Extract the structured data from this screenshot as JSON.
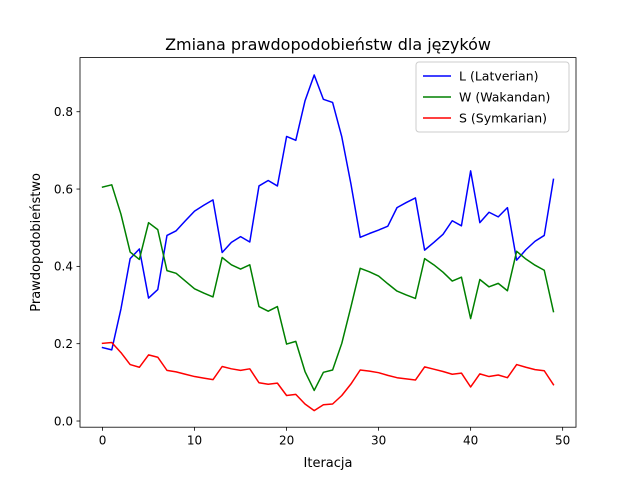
{
  "chart_data": {
    "type": "line",
    "title": "Zmiana prawdopodobieństw dla języków",
    "xlabel": "Iteracja",
    "ylabel": "Prawdopodobieństwo",
    "xlim": [
      -2.45,
      51.45
    ],
    "ylim": [
      -0.016,
      0.94
    ],
    "xticks": [
      0,
      10,
      20,
      30,
      40,
      50
    ],
    "yticks": [
      0.0,
      0.2,
      0.4,
      0.6,
      0.8
    ],
    "xtick_labels": [
      "0",
      "10",
      "20",
      "30",
      "40",
      "50"
    ],
    "ytick_labels": [
      "0.0",
      "0.2",
      "0.4",
      "0.6",
      "0.8"
    ],
    "grid": false,
    "legend_position": "top-right",
    "x": [
      0,
      1,
      2,
      3,
      4,
      5,
      6,
      7,
      8,
      9,
      10,
      11,
      12,
      13,
      14,
      15,
      16,
      17,
      18,
      19,
      20,
      21,
      22,
      23,
      24,
      25,
      26,
      27,
      28,
      29,
      30,
      31,
      32,
      33,
      34,
      35,
      36,
      37,
      38,
      39,
      40,
      41,
      42,
      43,
      44,
      45,
      46,
      47,
      48,
      49
    ],
    "series": [
      {
        "name": "L (Latverian)",
        "color": "#0000ff",
        "values": [
          0.19,
          0.184,
          0.29,
          0.42,
          0.445,
          0.318,
          0.34,
          0.48,
          0.492,
          0.518,
          0.543,
          0.558,
          0.572,
          0.436,
          0.462,
          0.477,
          0.463,
          0.608,
          0.622,
          0.608,
          0.736,
          0.726,
          0.828,
          0.895,
          0.832,
          0.824,
          0.735,
          0.612,
          0.475,
          0.485,
          0.494,
          0.504,
          0.552,
          0.565,
          0.577,
          0.442,
          0.462,
          0.483,
          0.518,
          0.505,
          0.647,
          0.513,
          0.54,
          0.528,
          0.552,
          0.416,
          0.443,
          0.465,
          0.48,
          0.625
        ]
      },
      {
        "name": "W (Wakandan)",
        "color": "#008000",
        "values": [
          0.605,
          0.611,
          0.535,
          0.437,
          0.418,
          0.513,
          0.495,
          0.389,
          0.382,
          0.362,
          0.342,
          0.331,
          0.321,
          0.423,
          0.404,
          0.393,
          0.404,
          0.296,
          0.284,
          0.296,
          0.199,
          0.206,
          0.128,
          0.079,
          0.126,
          0.132,
          0.201,
          0.296,
          0.395,
          0.386,
          0.375,
          0.355,
          0.336,
          0.326,
          0.317,
          0.42,
          0.404,
          0.385,
          0.362,
          0.372,
          0.265,
          0.366,
          0.347,
          0.356,
          0.337,
          0.439,
          0.419,
          0.403,
          0.39,
          0.283
        ]
      },
      {
        "name": "S (Symkarian)",
        "color": "#ff0000",
        "values": [
          0.201,
          0.203,
          0.177,
          0.146,
          0.139,
          0.171,
          0.165,
          0.131,
          0.127,
          0.121,
          0.115,
          0.111,
          0.107,
          0.141,
          0.135,
          0.131,
          0.135,
          0.099,
          0.095,
          0.098,
          0.066,
          0.069,
          0.044,
          0.027,
          0.042,
          0.044,
          0.066,
          0.096,
          0.132,
          0.129,
          0.125,
          0.118,
          0.112,
          0.109,
          0.106,
          0.14,
          0.134,
          0.128,
          0.121,
          0.124,
          0.088,
          0.122,
          0.115,
          0.119,
          0.112,
          0.146,
          0.139,
          0.133,
          0.13,
          0.094
        ]
      }
    ]
  }
}
